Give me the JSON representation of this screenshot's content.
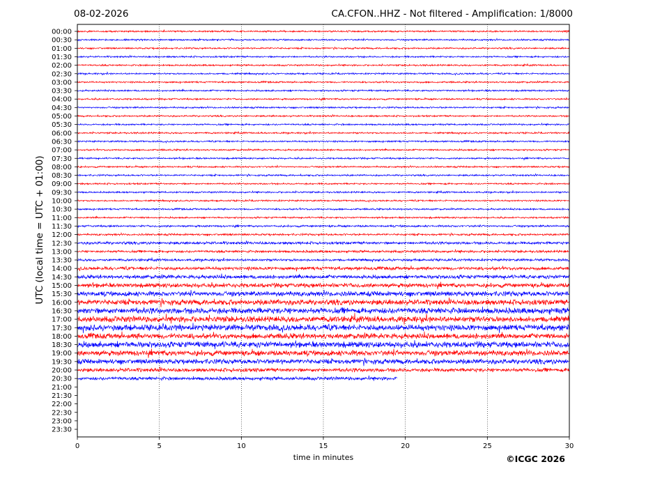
{
  "header": {
    "date": "08-02-2026",
    "title": "CA.CFON..HHZ - Not filtered - Amplification: 1/8000"
  },
  "footer": {
    "copyright": "©ICGC 2026"
  },
  "chart_data": {
    "type": "line",
    "title": "CA.CFON..HHZ - Not filtered - Amplification: 1/8000",
    "xlabel": "time in minutes",
    "ylabel": "UTC (local time = UTC + 01:00)",
    "xlim": [
      0,
      30
    ],
    "x_ticks": [
      "0",
      "5",
      "10",
      "15",
      "20",
      "25",
      "30"
    ],
    "y_ticks": [
      "00:00",
      "00:30",
      "01:00",
      "01:30",
      "02:00",
      "02:30",
      "03:00",
      "03:30",
      "04:00",
      "04:30",
      "05:00",
      "05:30",
      "06:00",
      "06:30",
      "07:00",
      "07:30",
      "08:00",
      "08:30",
      "09:00",
      "09:30",
      "10:00",
      "10:30",
      "11:00",
      "11:30",
      "12:00",
      "12:30",
      "13:00",
      "13:30",
      "14:00",
      "14:30",
      "15:00",
      "15:30",
      "16:00",
      "16:30",
      "17:00",
      "17:30",
      "18:00",
      "18:30",
      "19:00",
      "19:30",
      "20:00",
      "20:30",
      "21:00",
      "21:30",
      "22:00",
      "22:30",
      "23:00",
      "23:30"
    ],
    "grid": "vertical dotted lines at 5-minute intervals",
    "colors": {
      "even_rows": "#ff0000",
      "odd_rows": "#0000ff"
    },
    "traces": [
      {
        "row": "00:00",
        "amplitude": 0.15,
        "start": 0,
        "end": 30
      },
      {
        "row": "00:30",
        "amplitude": 0.15,
        "start": 0,
        "end": 30
      },
      {
        "row": "01:00",
        "amplitude": 0.15,
        "start": 0,
        "end": 30
      },
      {
        "row": "01:30",
        "amplitude": 0.15,
        "start": 0,
        "end": 30
      },
      {
        "row": "02:00",
        "amplitude": 0.15,
        "start": 0,
        "end": 30
      },
      {
        "row": "02:30",
        "amplitude": 0.15,
        "start": 0,
        "end": 30
      },
      {
        "row": "03:00",
        "amplitude": 0.15,
        "start": 0,
        "end": 30
      },
      {
        "row": "03:30",
        "amplitude": 0.15,
        "start": 0,
        "end": 30
      },
      {
        "row": "04:00",
        "amplitude": 0.15,
        "start": 0,
        "end": 30
      },
      {
        "row": "04:30",
        "amplitude": 0.15,
        "start": 0,
        "end": 30
      },
      {
        "row": "05:00",
        "amplitude": 0.15,
        "start": 0,
        "end": 30
      },
      {
        "row": "05:30",
        "amplitude": 0.15,
        "start": 0,
        "end": 30
      },
      {
        "row": "06:00",
        "amplitude": 0.15,
        "start": 0,
        "end": 30
      },
      {
        "row": "06:30",
        "amplitude": 0.15,
        "start": 0,
        "end": 30
      },
      {
        "row": "07:00",
        "amplitude": 0.15,
        "start": 0,
        "end": 30
      },
      {
        "row": "07:30",
        "amplitude": 0.15,
        "start": 0,
        "end": 30
      },
      {
        "row": "08:00",
        "amplitude": 0.15,
        "start": 0,
        "end": 30
      },
      {
        "row": "08:30",
        "amplitude": 0.15,
        "start": 0,
        "end": 30
      },
      {
        "row": "09:00",
        "amplitude": 0.15,
        "start": 0,
        "end": 30
      },
      {
        "row": "09:30",
        "amplitude": 0.15,
        "start": 0,
        "end": 30
      },
      {
        "row": "10:00",
        "amplitude": 0.15,
        "start": 0,
        "end": 30
      },
      {
        "row": "10:30",
        "amplitude": 0.15,
        "start": 0,
        "end": 30
      },
      {
        "row": "11:00",
        "amplitude": 0.15,
        "start": 0,
        "end": 30
      },
      {
        "row": "11:30",
        "amplitude": 0.18,
        "start": 0,
        "end": 30
      },
      {
        "row": "12:00",
        "amplitude": 0.18,
        "start": 0,
        "end": 30
      },
      {
        "row": "12:30",
        "amplitude": 0.25,
        "start": 0,
        "end": 30
      },
      {
        "row": "13:00",
        "amplitude": 0.22,
        "start": 0,
        "end": 30
      },
      {
        "row": "13:30",
        "amplitude": 0.22,
        "start": 0,
        "end": 30
      },
      {
        "row": "14:00",
        "amplitude": 0.3,
        "start": 0,
        "end": 30
      },
      {
        "row": "14:30",
        "amplitude": 0.35,
        "start": 0,
        "end": 30
      },
      {
        "row": "15:00",
        "amplitude": 0.4,
        "start": 0,
        "end": 30
      },
      {
        "row": "15:30",
        "amplitude": 0.45,
        "start": 0,
        "end": 30
      },
      {
        "row": "16:00",
        "amplitude": 0.5,
        "start": 0,
        "end": 30
      },
      {
        "row": "16:30",
        "amplitude": 0.55,
        "start": 0,
        "end": 30
      },
      {
        "row": "17:00",
        "amplitude": 0.55,
        "start": 0,
        "end": 30
      },
      {
        "row": "17:30",
        "amplitude": 0.55,
        "start": 0,
        "end": 30
      },
      {
        "row": "18:00",
        "amplitude": 0.5,
        "start": 0,
        "end": 30
      },
      {
        "row": "18:30",
        "amplitude": 0.55,
        "start": 0,
        "end": 30
      },
      {
        "row": "19:00",
        "amplitude": 0.5,
        "start": 0,
        "end": 30
      },
      {
        "row": "19:30",
        "amplitude": 0.45,
        "start": 0,
        "end": 30
      },
      {
        "row": "20:00",
        "amplitude": 0.35,
        "start": 0,
        "end": 30
      },
      {
        "row": "20:30",
        "amplitude": 0.3,
        "start": 0,
        "end": 19.5
      }
    ]
  }
}
